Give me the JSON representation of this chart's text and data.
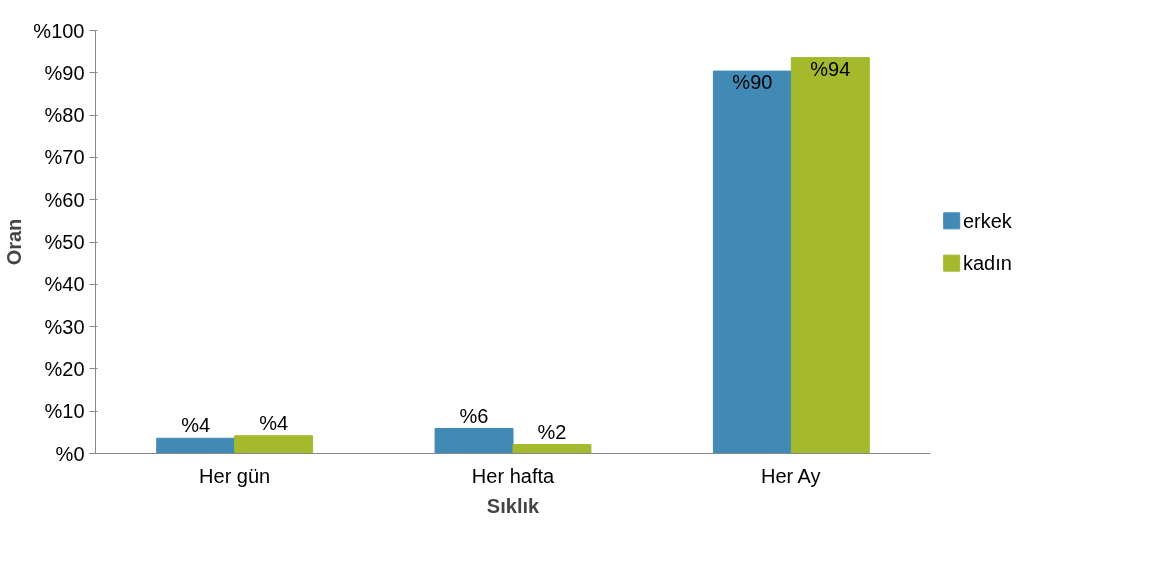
{
  "chart_data": {
    "type": "bar",
    "xlabel": "Sıklık",
    "ylabel": "Oran",
    "categories": [
      "Her gün",
      "Her hafta",
      "Her Ay"
    ],
    "series": [
      {
        "name": "erkek",
        "color": "#418ab6",
        "values": [
          3.6,
          5.9,
          90.4
        ],
        "value_labels": [
          "%4",
          "%6",
          "%90"
        ]
      },
      {
        "name": "kadın",
        "color": "#a4b92c",
        "values": [
          4.2,
          2.1,
          93.6
        ],
        "value_labels": [
          "%4",
          "%2",
          "%94"
        ]
      }
    ],
    "ylim": [
      0,
      100
    ],
    "yticks": [
      {
        "value": 0,
        "label": "%0"
      },
      {
        "value": 10,
        "label": "%10"
      },
      {
        "value": 20,
        "label": "%20"
      },
      {
        "value": 30,
        "label": "%30"
      },
      {
        "value": 40,
        "label": "%40"
      },
      {
        "value": 50,
        "label": "%50"
      },
      {
        "value": 60,
        "label": "%60"
      },
      {
        "value": 70,
        "label": "%70"
      },
      {
        "value": 80,
        "label": "%80"
      },
      {
        "value": 90,
        "label": "%90"
      },
      {
        "value": 100,
        "label": "%100"
      }
    ],
    "grid": false,
    "legend": "right"
  }
}
